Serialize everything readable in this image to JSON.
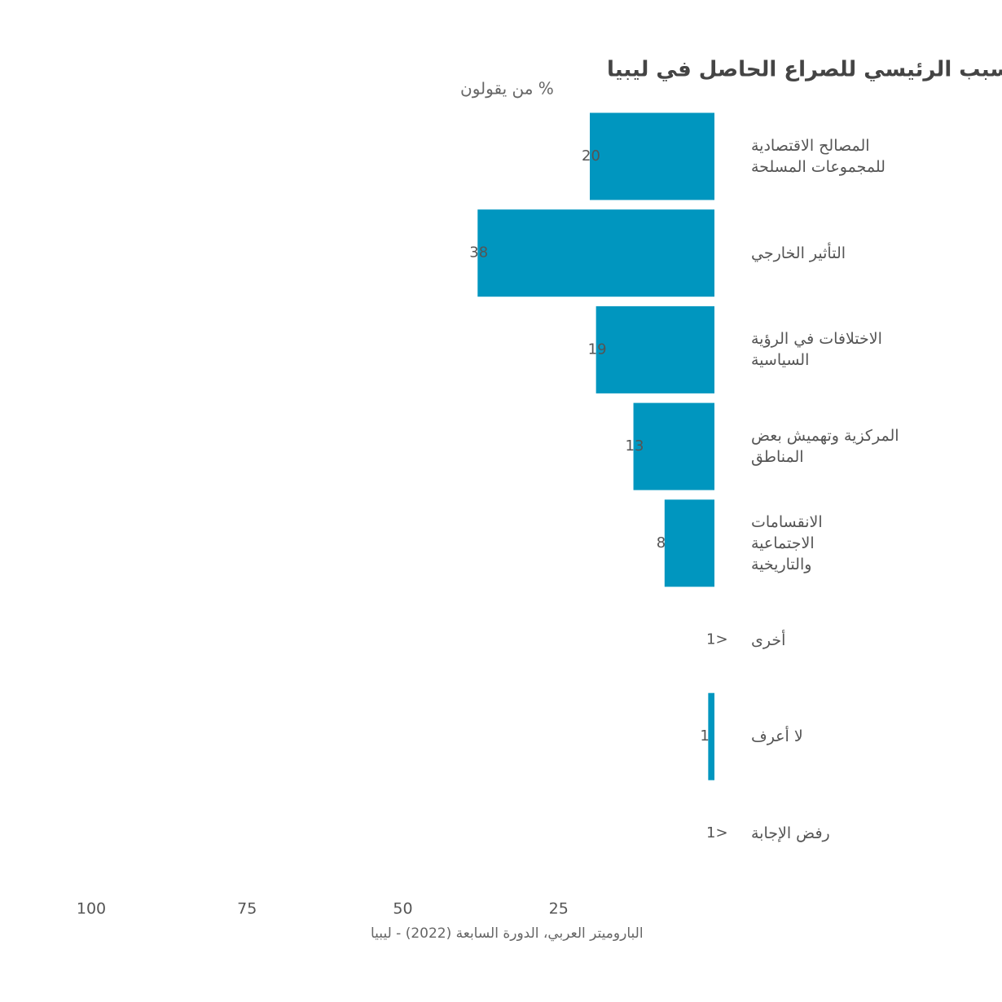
{
  "chart_data": {
    "type": "bar",
    "orientation": "horizontal",
    "title": "السبب الرئيسي للصراع الحاصل في ليبيا",
    "subtitle": "% من يقولون",
    "source": "الباروميتر العربي، الدورة السابعة (2022) - ليبيا",
    "categories": [
      "المصالح الاقتصادية\nللمجموعات المسلحة",
      "التأثير الخارجي",
      "الاختلافات في الرؤية\nالسياسية",
      "المركزية وتهميش بعض\nالمناطق",
      "الانقسامات\nالاجتماعية\nوالتاريخية",
      "أخرى",
      "لا أعرف",
      "رفض الإجابة"
    ],
    "values": [
      20,
      38,
      19,
      13,
      8,
      0,
      1,
      0
    ],
    "value_labels": [
      "20",
      "38",
      "19",
      "13",
      "8",
      "<1",
      "1",
      "<1"
    ],
    "color": "#0096bf",
    "xlim": [
      0,
      100
    ],
    "xticks": [
      25,
      50,
      75,
      100
    ],
    "x_reversed": true
  }
}
